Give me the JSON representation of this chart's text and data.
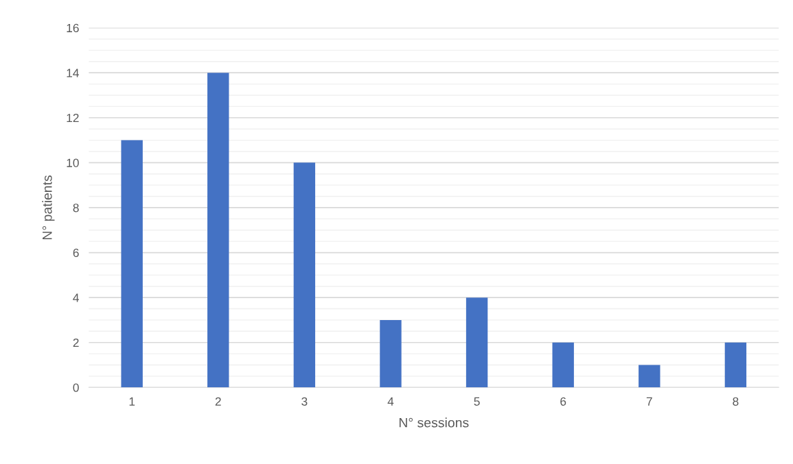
{
  "chart_data": {
    "type": "bar",
    "xlabel": "N° sessions",
    "ylabel": "N° patients",
    "categories": [
      "1",
      "2",
      "3",
      "4",
      "5",
      "6",
      "7",
      "8"
    ],
    "values": [
      11,
      14,
      10,
      3,
      4,
      2,
      1,
      2
    ],
    "color": "#4472c4",
    "ylim": [
      0,
      16
    ],
    "yticks": [
      0,
      {
        "value": 0.5,
        "label": null
      },
      {
        "value": 1,
        "label": null
      },
      {
        "value": 1.5,
        "label": null
      },
      2,
      {
        "value": 2.5,
        "label": null
      },
      {
        "value": 3,
        "label": null
      },
      {
        "value": 3.5,
        "label": null
      },
      4,
      {
        "value": 4.5,
        "label": null
      },
      {
        "value": 5,
        "label": null
      },
      {
        "value": 5.5,
        "label": null
      },
      6,
      {
        "value": 6.5,
        "label": null
      },
      {
        "value": 7,
        "label": null
      },
      {
        "value": 7.5,
        "label": null
      },
      8,
      {
        "value": 8.5,
        "label": null
      },
      {
        "value": 9,
        "label": null
      },
      {
        "value": 9.5,
        "label": null
      },
      10,
      {
        "value": 10.5,
        "label": null
      },
      {
        "value": 11,
        "label": null
      },
      {
        "value": 11.5,
        "label": null
      },
      12,
      {
        "value": 12.5,
        "label": null
      },
      {
        "value": 13,
        "label": null
      },
      {
        "value": 13.5,
        "label": null
      },
      14,
      {
        "value": 14.5,
        "label": null
      },
      {
        "value": 15,
        "label": null
      },
      {
        "value": 15.5,
        "label": null
      },
      16
    ],
    "grid": "y"
  }
}
